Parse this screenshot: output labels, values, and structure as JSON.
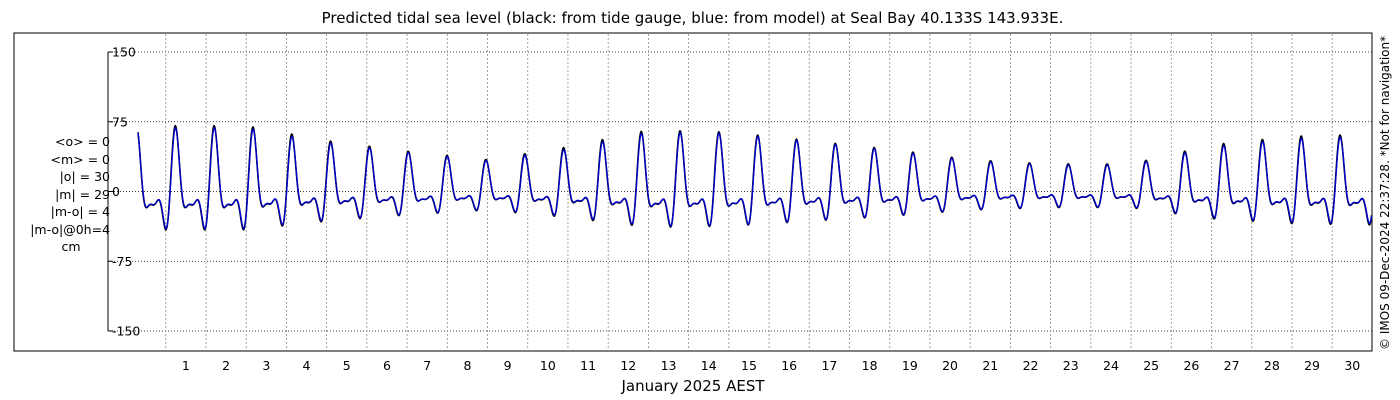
{
  "chart_data": {
    "type": "line",
    "title": "Predicted tidal sea level (black: from tide gauge, blue: from model) at Seal Bay 40.133S 143.933E.",
    "xlabel": "January 2025 AEST",
    "ylabel": "",
    "ylim": [
      -150,
      150
    ],
    "yticks": [
      150,
      75,
      0,
      -75,
      -150
    ],
    "yticklabels": [
      "150",
      "75",
      "0",
      "-75",
      "-150"
    ],
    "xlim_days": [
      0.31,
      30.99
    ],
    "xticks": [
      1,
      2,
      3,
      4,
      5,
      6,
      7,
      8,
      9,
      10,
      11,
      12,
      13,
      14,
      15,
      16,
      17,
      18,
      19,
      20,
      21,
      22,
      23,
      24,
      25,
      26,
      27,
      28,
      29,
      30
    ],
    "grid": true,
    "legend": "none",
    "series": [
      {
        "color": "#000000",
        "amplitude_by_day": {
          "1": 62,
          "3": 62,
          "5": 48,
          "7": 38,
          "9": 30,
          "11": 42,
          "13": 58,
          "15": 56,
          "17": 48,
          "19": 40,
          "21": 30,
          "23": 26,
          "25": 26,
          "27": 44,
          "29": 52,
          "31": 54
        }
      },
      {
        "color": "#0000cc",
        "amplitude_by_day": {
          "1": 60,
          "3": 60,
          "5": 46,
          "7": 37,
          "9": 29,
          "11": 40,
          "13": 56,
          "15": 55,
          "17": 47,
          "19": 39,
          "21": 29,
          "23": 25,
          "25": 25,
          "27": 42,
          "29": 50,
          "31": 52
        }
      }
    ]
  },
  "stats": [
    "<o> = 0",
    "<m> = 0",
    "|o| = 30",
    "|m| = 29",
    "|m-o| = 4",
    "|m-o|@0h=4",
    "cm"
  ],
  "credit": "© IMOS 09-Dec-2024 22:37:28. *Not for navigation*",
  "colors": {
    "gauge": "#000000",
    "model": "#0000cc",
    "grid": "#000000"
  }
}
